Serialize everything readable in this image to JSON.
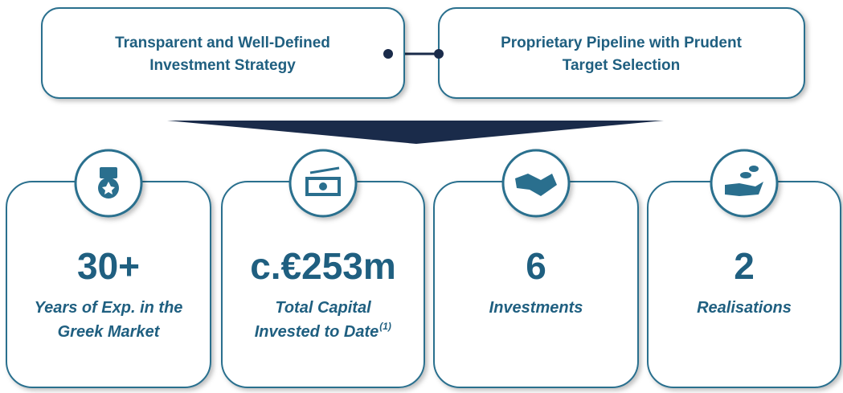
{
  "top_boxes": [
    {
      "lines": [
        "Transparent and Well-Defined",
        "Investment Strategy"
      ]
    },
    {
      "lines": [
        "Proprietary Pipeline with Prudent",
        "Target Selection"
      ]
    }
  ],
  "cards": [
    {
      "value": "30+",
      "lines": [
        "Years of Exp. in the",
        "Greek Market"
      ]
    },
    {
      "value": "c.€253m",
      "lines": [
        "Total Capital",
        "Invested to Date"
      ],
      "footnote": "(1)"
    },
    {
      "value": "6",
      "lines": [
        "Investments"
      ]
    },
    {
      "value": "2",
      "lines": [
        "Realisations"
      ]
    }
  ]
}
